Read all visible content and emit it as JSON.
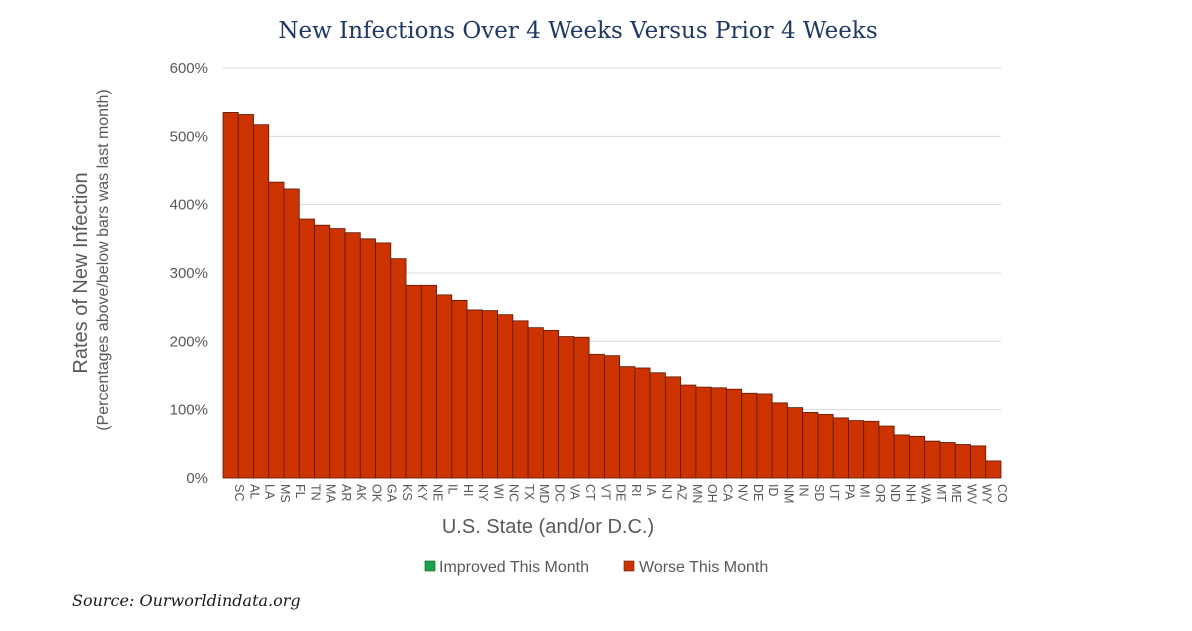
{
  "source": "Source: Ourworldindata.org",
  "colors": {
    "improved": "#1aa34a",
    "worse": "#cc3300",
    "bar_stroke": "#5a1a05",
    "grid": "#d9d9d9",
    "title": "#1f3864"
  },
  "chart_data": {
    "type": "bar",
    "title": "New Infections Over 4 Weeks Versus Prior 4 Weeks",
    "xlabel": "U.S. State (and/or D.C.)",
    "ylabel": "Rates of New Infection",
    "ylabel_sub": "(Percentages above/below bars was last month)",
    "ylim": [
      0,
      600
    ],
    "yticks": [
      0,
      100,
      200,
      300,
      400,
      500,
      600
    ],
    "ytick_labels": [
      "0%",
      "100%",
      "200%",
      "300%",
      "400%",
      "500%",
      "600%"
    ],
    "grid": true,
    "legend_position": "bottom",
    "legend": [
      {
        "label": "Improved This Month",
        "color": "#1aa34a"
      },
      {
        "label": "Worse This Month",
        "color": "#cc3300"
      }
    ],
    "categories": [
      "SC",
      "AL",
      "LA",
      "MS",
      "FL",
      "TN",
      "MA",
      "AR",
      "AK",
      "OK",
      "GA",
      "KS",
      "KY",
      "NE",
      "IL",
      "HI",
      "NY",
      "WI",
      "NC",
      "TX",
      "MD",
      "DC",
      "VA",
      "CT",
      "VT",
      "DE",
      "RI",
      "IA",
      "NJ",
      "AZ",
      "MN",
      "OH",
      "CA",
      "NV",
      "DE",
      "ID",
      "NM",
      "IN",
      "SD",
      "UT",
      "PA",
      "MI",
      "OR",
      "ND",
      "NH",
      "WA",
      "MT",
      "ME",
      "WV",
      "WY",
      "CO"
    ],
    "values": [
      535,
      532,
      517,
      433,
      423,
      379,
      370,
      365,
      359,
      350,
      344,
      321,
      282,
      282,
      268,
      260,
      246,
      245,
      239,
      230,
      220,
      216,
      207,
      206,
      181,
      179,
      163,
      161,
      154,
      148,
      136,
      133,
      132,
      130,
      124,
      123,
      110,
      103,
      96,
      93,
      88,
      84,
      83,
      76,
      63,
      61,
      54,
      52,
      49,
      47,
      25
    ],
    "series": [
      {
        "name": "Worse This Month"
      }
    ]
  }
}
